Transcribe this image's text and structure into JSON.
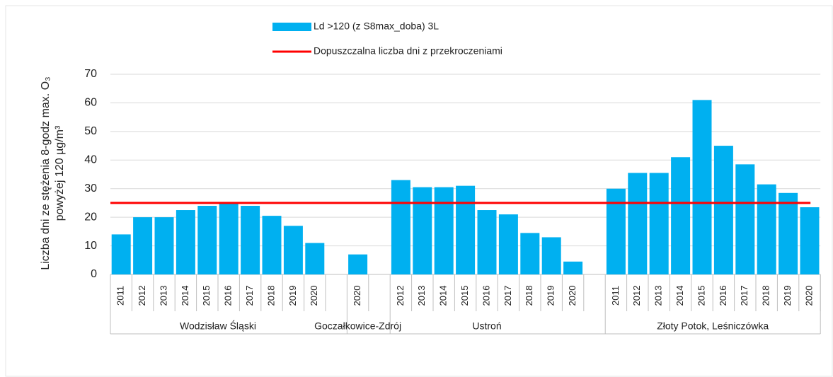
{
  "chart_data": {
    "type": "bar",
    "y_label": [
      "Liczba dni ze stężenia 8-godz max. O₃",
      "powyżej 120 µg/m³"
    ],
    "series_name": "Ld >120 (z S8max_doba) 3L",
    "color": "#00b0f0",
    "groups": [
      {
        "name": "Wodzisław Śląski",
        "categories": [
          "2011",
          "2012",
          "2013",
          "2014",
          "2015",
          "2016",
          "2017",
          "2018",
          "2019",
          "2020"
        ],
        "values": [
          14,
          20,
          20,
          22.5,
          24,
          25,
          24,
          20.5,
          17,
          11
        ]
      },
      {
        "name": "Goczałkowice-Zdrój",
        "categories": [
          "2020"
        ],
        "values": [
          7
        ]
      },
      {
        "name": "Ustroń",
        "categories": [
          "2012",
          "2013",
          "2014",
          "2015",
          "2016",
          "2017",
          "2018",
          "2019",
          "2020"
        ],
        "values": [
          33,
          30.5,
          30.5,
          31,
          22.5,
          21,
          14.5,
          13,
          4.5
        ]
      },
      {
        "name": "Złoty Potok, Leśniczówka",
        "categories": [
          "2011",
          "2012",
          "2013",
          "2014",
          "2015",
          "2016",
          "2017",
          "2018",
          "2019",
          "2020"
        ],
        "values": [
          30,
          35.5,
          35.5,
          41,
          61,
          45,
          38.5,
          31.5,
          28.5,
          23.5
        ]
      }
    ],
    "threshold": {
      "name": "Dopuszczalna liczba dni z przekroczeniami",
      "value": 25,
      "color": "#ff0000"
    },
    "ylim": [
      0,
      70
    ],
    "yticks": [
      0,
      10,
      20,
      30,
      40,
      50,
      60,
      70
    ],
    "grid": true
  }
}
